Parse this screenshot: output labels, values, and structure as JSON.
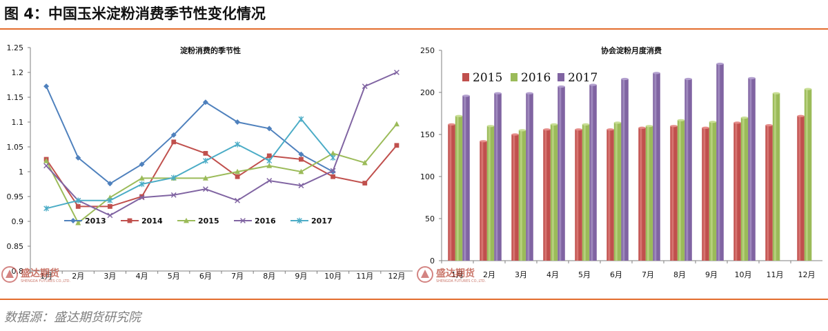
{
  "figure_title": "图 4：中国玉米淀粉消费季节性变化情况",
  "source": "数据源：盛达期货研究院",
  "watermark": {
    "cn": "盛达期货",
    "en": "SHENGDA FUTURES CO.,LTD."
  },
  "colors": {
    "accent": "#e36c2c"
  },
  "chart_data": [
    {
      "type": "line",
      "title": "淀粉消费的季节性",
      "categories": [
        "1月",
        "2月",
        "3月",
        "4月",
        "5月",
        "6月",
        "7月",
        "8月",
        "9月",
        "10月",
        "11月",
        "12月"
      ],
      "ylim": [
        0.8,
        1.25
      ],
      "yticks": [
        "0.8",
        "0.85",
        "0.9",
        "0.95",
        "1",
        "1.05",
        "1.1",
        "1.15",
        "1.2",
        "1.25"
      ],
      "grid": false,
      "legend": "bottom-inside",
      "series": [
        {
          "name": "2013",
          "color": "#4f81bd",
          "marker": "diamond",
          "values": [
            1.172,
            1.028,
            0.976,
            1.015,
            1.074,
            1.14,
            1.1,
            1.087,
            1.035,
            1.0,
            null,
            null
          ]
        },
        {
          "name": "2014",
          "color": "#c0504d",
          "marker": "square",
          "values": [
            1.025,
            0.93,
            0.93,
            0.95,
            1.06,
            1.037,
            0.99,
            1.032,
            1.025,
            0.99,
            0.977,
            1.053
          ]
        },
        {
          "name": "2015",
          "color": "#9bbb59",
          "marker": "triangle",
          "values": [
            1.022,
            0.897,
            0.948,
            0.987,
            0.987,
            0.987,
            1.0,
            1.012,
            1.0,
            1.037,
            1.018,
            1.096
          ]
        },
        {
          "name": "2016",
          "color": "#8064a2",
          "marker": "x",
          "values": [
            1.012,
            0.942,
            0.912,
            0.948,
            0.953,
            0.965,
            0.942,
            0.982,
            0.972,
            1.002,
            1.172,
            1.2
          ]
        },
        {
          "name": "2017",
          "color": "#4bacc6",
          "marker": "star",
          "values": [
            0.926,
            0.942,
            0.942,
            0.975,
            0.988,
            1.022,
            1.055,
            1.022,
            1.106,
            1.028,
            null,
            null
          ]
        }
      ]
    },
    {
      "type": "bar",
      "title": "协会淀粉月度消费",
      "categories": [
        "1月",
        "2月",
        "3月",
        "4月",
        "5月",
        "6月",
        "7月",
        "8月",
        "9月",
        "10月",
        "11月",
        "12月"
      ],
      "ylim": [
        0,
        250
      ],
      "yticks": [
        "0",
        "50",
        "100",
        "150",
        "200",
        "250"
      ],
      "grid": false,
      "legend": "top-left",
      "series": [
        {
          "name": "2015",
          "color": "#c0504d",
          "values": [
            162,
            142,
            150,
            156,
            156,
            156,
            158,
            160,
            158,
            164,
            161,
            172
          ]
        },
        {
          "name": "2016",
          "color": "#9bbb59",
          "values": [
            172,
            160,
            155,
            162,
            162,
            164,
            160,
            167,
            165,
            170,
            199,
            204
          ]
        },
        {
          "name": "2017",
          "color": "#8064a2",
          "values": [
            196,
            199,
            199,
            207,
            209,
            216,
            223,
            216,
            234,
            217,
            null,
            null
          ]
        }
      ]
    }
  ]
}
